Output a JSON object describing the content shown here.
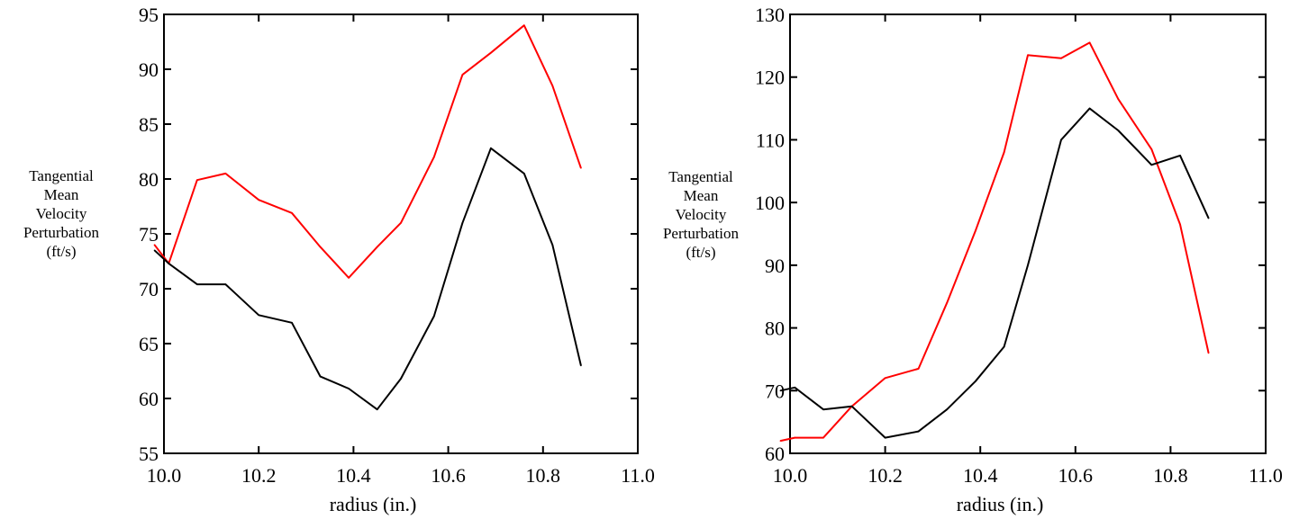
{
  "chart_data": [
    {
      "type": "line",
      "title": "",
      "xlabel": "radius (in.)",
      "ylabel": [
        "Tangential",
        "Mean",
        "Velocity",
        "Perturbation",
        "(ft/s)"
      ],
      "xlim": [
        10.0,
        11.0
      ],
      "ylim": [
        55,
        95
      ],
      "xticks": [
        "10.0",
        "10.2",
        "10.4",
        "10.6",
        "10.8",
        "11.0"
      ],
      "yticks": [
        "55",
        "60",
        "65",
        "70",
        "75",
        "80",
        "85",
        "90",
        "95"
      ],
      "grid": false,
      "series": [
        {
          "color": "#ff0000",
          "x": [
            9.98,
            10.01,
            10.07,
            10.13,
            10.2,
            10.27,
            10.33,
            10.39,
            10.45,
            10.5,
            10.57,
            10.63,
            10.69,
            10.76,
            10.82,
            10.88
          ],
          "y": [
            74,
            72.3,
            79.9,
            80.5,
            78.1,
            76.9,
            73.8,
            71.0,
            73.8,
            76.0,
            82.0,
            89.5,
            91.5,
            94.0,
            88.5,
            81.0
          ]
        },
        {
          "color": "#000000",
          "x": [
            9.98,
            10.01,
            10.07,
            10.13,
            10.2,
            10.27,
            10.33,
            10.39,
            10.45,
            10.5,
            10.57,
            10.63,
            10.69,
            10.76,
            10.82,
            10.88
          ],
          "y": [
            73.5,
            72.3,
            70.4,
            70.4,
            67.6,
            66.9,
            62.0,
            60.9,
            59.0,
            61.8,
            67.5,
            76.0,
            82.8,
            80.5,
            74.0,
            63.0
          ]
        }
      ]
    },
    {
      "type": "line",
      "title": "",
      "xlabel": "radius (in.)",
      "ylabel": [
        "Tangential",
        "Mean",
        "Velocity",
        "Perturbation",
        "(ft/s)"
      ],
      "xlim": [
        10.0,
        11.0
      ],
      "ylim": [
        60,
        130
      ],
      "xticks": [
        "10.0",
        "10.2",
        "10.4",
        "10.6",
        "10.8",
        "11.0"
      ],
      "yticks": [
        "60",
        "70",
        "80",
        "90",
        "100",
        "110",
        "120",
        "130"
      ],
      "grid": false,
      "series": [
        {
          "color": "#ff0000",
          "x": [
            9.98,
            10.01,
            10.07,
            10.13,
            10.2,
            10.27,
            10.33,
            10.39,
            10.45,
            10.5,
            10.57,
            10.63,
            10.69,
            10.76,
            10.82,
            10.88
          ],
          "y": [
            62.0,
            62.5,
            62.5,
            67.5,
            72.0,
            73.5,
            84.0,
            95.5,
            108.0,
            123.5,
            123.0,
            125.5,
            116.5,
            108.5,
            96.5,
            76.0
          ]
        },
        {
          "color": "#000000",
          "x": [
            9.98,
            10.01,
            10.07,
            10.13,
            10.2,
            10.27,
            10.33,
            10.39,
            10.45,
            10.5,
            10.57,
            10.63,
            10.69,
            10.76,
            10.82,
            10.88
          ],
          "y": [
            70.0,
            70.5,
            67.0,
            67.5,
            62.5,
            63.5,
            67.0,
            71.5,
            77.0,
            90.0,
            110.0,
            115.0,
            111.5,
            106.0,
            107.5,
            97.5
          ]
        }
      ]
    }
  ]
}
